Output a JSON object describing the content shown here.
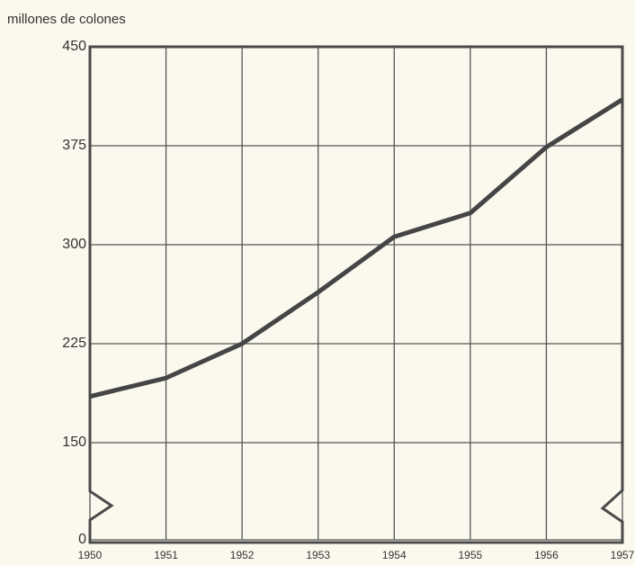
{
  "chart_data": {
    "type": "line",
    "y_axis_label": "millones de colones",
    "categories": [
      "1950",
      "1951",
      "1952",
      "1953",
      "1954",
      "1955",
      "1956",
      "1957"
    ],
    "values": [
      185,
      199,
      225,
      264,
      306,
      324,
      374,
      410
    ],
    "color": "#454545",
    "ylim": [
      0,
      450
    ],
    "yticks": [
      0,
      150,
      225,
      300,
      375,
      450
    ],
    "axis_break": [
      0,
      150
    ],
    "grid": true
  }
}
